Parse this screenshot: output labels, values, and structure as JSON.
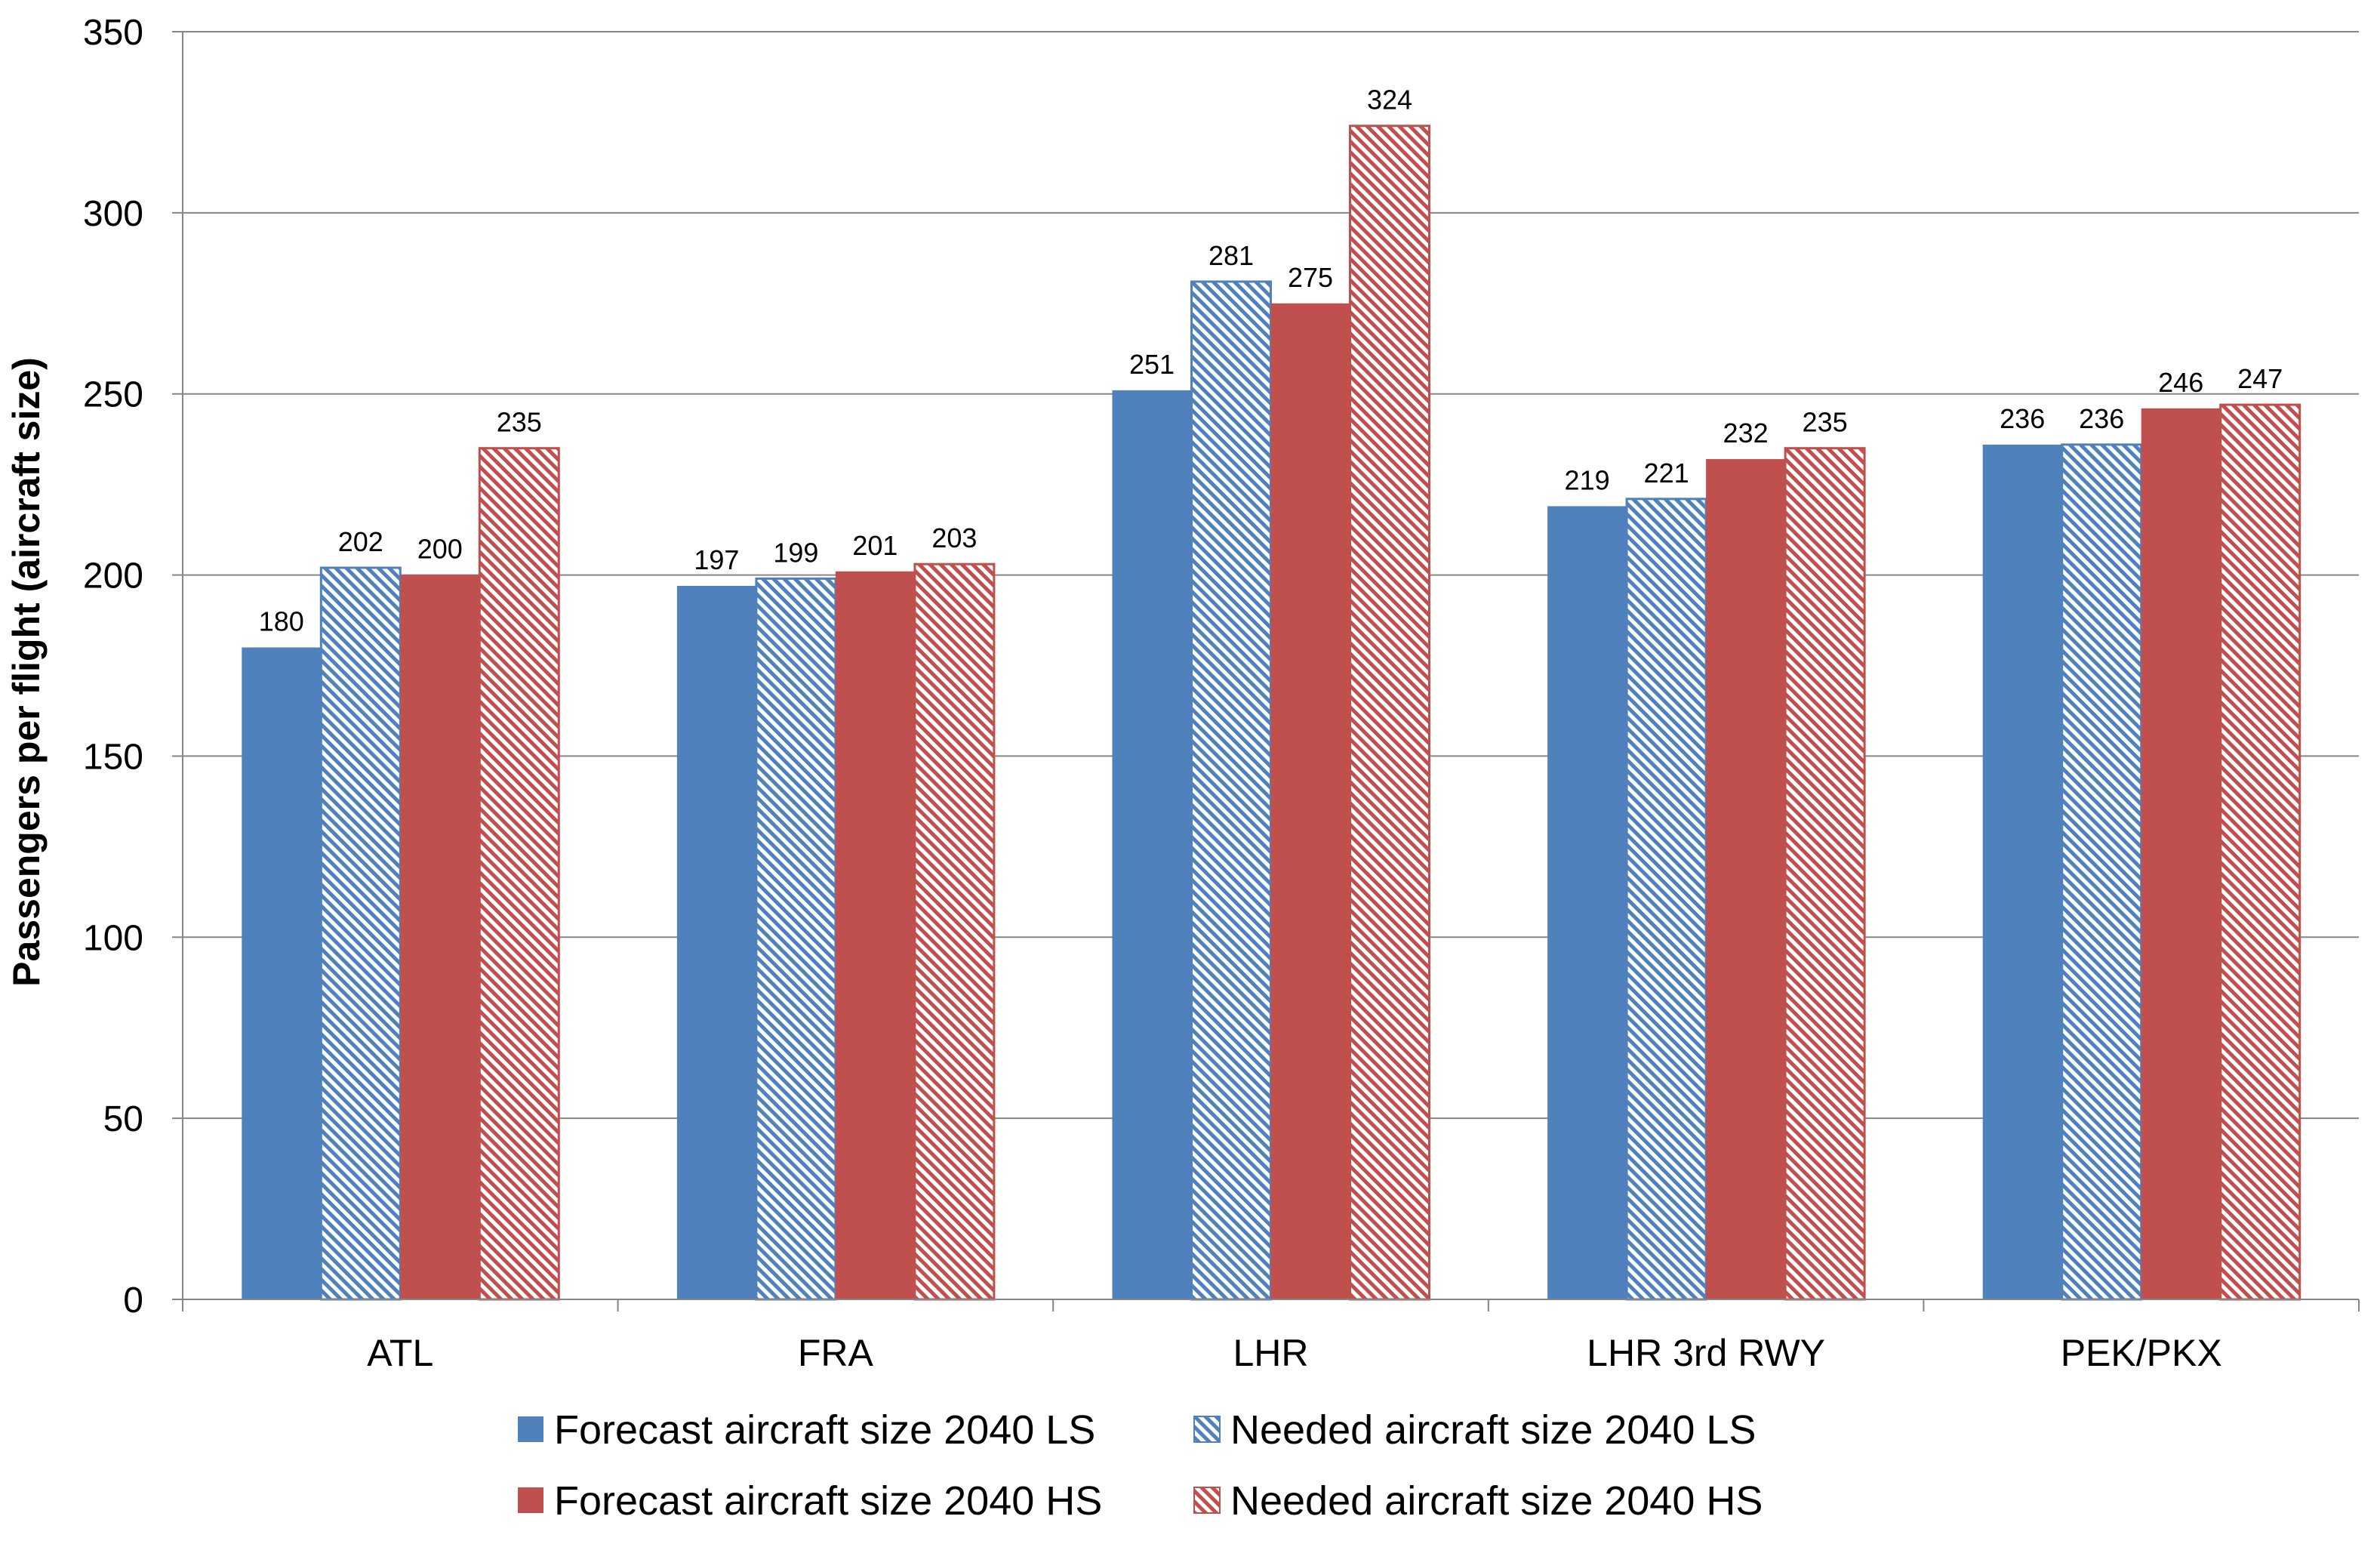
{
  "chart_data": {
    "type": "bar",
    "title": "",
    "xlabel": "",
    "ylabel": "Passengers per flight (aircraft size)",
    "ylim": [
      0,
      350
    ],
    "yticks": [
      0,
      50,
      100,
      150,
      200,
      250,
      300,
      350
    ],
    "grid": true,
    "legend_position": "bottom",
    "categories": [
      "ATL",
      "FRA",
      "LHR",
      "LHR 3rd RWY",
      "PEK/PKX"
    ],
    "series": [
      {
        "name": "Forecast aircraft size 2040 LS",
        "values": [
          180,
          197,
          251,
          219,
          236
        ],
        "labels": [
          "180",
          "197",
          "251",
          "219",
          "236"
        ],
        "color": "#4F81BD",
        "hatched": false
      },
      {
        "name": "Needed aircraft size 2040 LS",
        "values": [
          202,
          199,
          281,
          221,
          236
        ],
        "labels": [
          "202",
          "199",
          "281",
          "221",
          "236"
        ],
        "color": "#4F81BD",
        "hatched": true
      },
      {
        "name": "Forecast aircraft size 2040 HS",
        "values": [
          200,
          201,
          275,
          232,
          246
        ],
        "labels": [
          "200",
          "201",
          "275",
          "232",
          "246"
        ],
        "color": "#C0504D",
        "hatched": false
      },
      {
        "name": "Needed aircraft size 2040 HS",
        "values": [
          235,
          203,
          324,
          235,
          247
        ],
        "labels": [
          "235",
          "203",
          "324",
          "235",
          "247"
        ],
        "color": "#C0504D",
        "hatched": true
      }
    ]
  }
}
